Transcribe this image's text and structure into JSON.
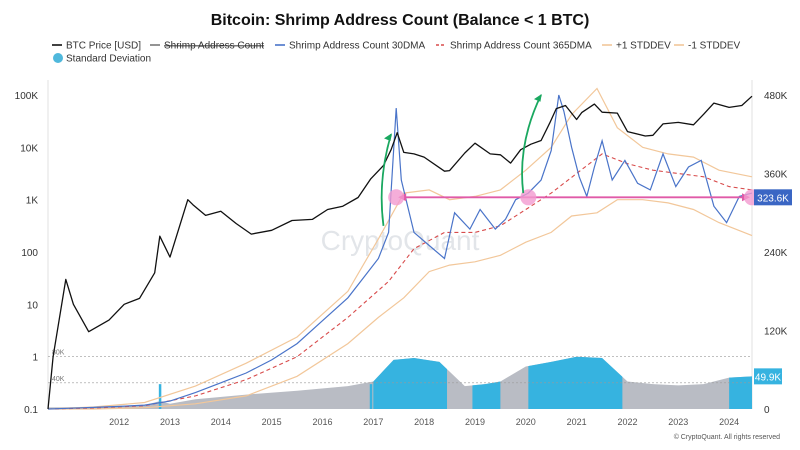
{
  "chart_data": {
    "type": "line",
    "title": "Bitcoin: Shrimp Address Count (Balance < 1 BTC)",
    "legend": [
      {
        "name": "BTC Price [USD]",
        "color": "#111111",
        "style": "solid"
      },
      {
        "name": "Shrimp Address Count",
        "color": "#7a7a7a",
        "style": "strikethrough"
      },
      {
        "name": "Shrimp Address Count 30DMA",
        "color": "#4a74c9",
        "style": "solid"
      },
      {
        "name": "Shrimp Address Count 365DMA",
        "color": "#d84b4b",
        "style": "dashed"
      },
      {
        "name": "+1 STDDEV",
        "color": "#f2c79a",
        "style": "solid"
      },
      {
        "name": "-1 STDDEV",
        "color": "#f2c79a",
        "style": "solid"
      },
      {
        "name": "Standard Deviation",
        "color": "#4fb8dc",
        "style": "dot"
      }
    ],
    "legend_placement": "top-left",
    "x_ticks": [
      "2012",
      "2013",
      "2014",
      "2015",
      "2016",
      "2017",
      "2018",
      "2019",
      "2020",
      "2021",
      "2022",
      "2023",
      "2024"
    ],
    "y_left_ticks": [
      "100K",
      "10K",
      "1K",
      "100",
      "10",
      "1",
      "0.1"
    ],
    "y_left_scale": "log",
    "y_left_range": [
      0.1,
      100000
    ],
    "y_right_ticks": [
      "480K",
      "360K",
      "240K",
      "120K",
      "0"
    ],
    "y_right_range": [
      0,
      480000
    ],
    "ref_lines": [
      {
        "label": "80K",
        "value": 80000
      },
      {
        "label": "40K",
        "value": 40000
      }
    ],
    "highlight_value_label": "323.6K",
    "highlight_value": 323600,
    "stddev_badge_label": "49.9K",
    "stddev_badge_value": 49900,
    "watermark": "CryptoQuant",
    "credit": "© CryptoQuant. All rights reserved",
    "btc_price": {
      "name": "BTC Price [USD]",
      "x": [
        2010.6,
        2011.2,
        2011.45,
        2011.6,
        2011.9,
        2012.3,
        2012.6,
        2012.9,
        2013.2,
        2013.3,
        2013.5,
        2013.85,
        2013.95,
        2014.2,
        2014.5,
        2014.8,
        2015.1,
        2015.5,
        2015.9,
        2016.3,
        2016.6,
        2016.9,
        2017.2,
        2017.45,
        2017.7,
        2017.85,
        2017.97,
        2018.1,
        2018.3,
        2018.5,
        2018.9,
        2019.0,
        2019.3,
        2019.5,
        2019.8,
        2020.0,
        2020.2,
        2020.4,
        2020.6,
        2020.8,
        2020.97,
        2021.1,
        2021.28,
        2021.5,
        2021.6,
        2021.85,
        2022.0,
        2022.3,
        2022.5,
        2022.85,
        2023.0,
        2023.2,
        2023.5,
        2023.8,
        2024.0,
        2024.2,
        2024.5,
        2024.75,
        2024.95
      ],
      "values": [
        0.1,
        1,
        30,
        10,
        3,
        5,
        10,
        13,
        40,
        200,
        80,
        1000,
        800,
        500,
        600,
        350,
        220,
        260,
        400,
        420,
        650,
        750,
        1100,
        2500,
        4500,
        9000,
        19000,
        8000,
        7500,
        6500,
        3500,
        3600,
        7800,
        12000,
        7500,
        7200,
        5000,
        9000,
        11500,
        13500,
        29000,
        55000,
        63000,
        34000,
        46000,
        67000,
        47000,
        45000,
        20000,
        16500,
        17000,
        28000,
        30000,
        27000,
        43000,
        70000,
        58000,
        63000,
        95000
      ]
    },
    "shrimp_30dma": {
      "name": "Shrimp Address Count 30DMA",
      "x": [
        2010.6,
        2011.5,
        2012.0,
        2012.5,
        2013.0,
        2013.5,
        2014.0,
        2014.5,
        2015.0,
        2015.5,
        2016.0,
        2016.5,
        2017.0,
        2017.3,
        2017.6,
        2017.8,
        2017.95,
        2018.05,
        2018.3,
        2018.6,
        2018.9,
        2019.1,
        2019.4,
        2019.6,
        2019.9,
        2020.1,
        2020.3,
        2020.55,
        2020.8,
        2021.0,
        2021.15,
        2021.25,
        2021.4,
        2021.55,
        2021.7,
        2021.85,
        2022.0,
        2022.2,
        2022.45,
        2022.7,
        2022.95,
        2023.2,
        2023.45,
        2023.7,
        2023.95,
        2024.2,
        2024.45,
        2024.7,
        2024.95
      ],
      "values": [
        0,
        1000,
        2500,
        4000,
        6000,
        12000,
        25000,
        40000,
        55000,
        75000,
        100000,
        135000,
        170000,
        200000,
        230000,
        270000,
        460000,
        350000,
        270000,
        250000,
        230000,
        300000,
        275000,
        305000,
        275000,
        290000,
        320000,
        330000,
        350000,
        395000,
        480000,
        455000,
        400000,
        355000,
        325000,
        370000,
        410000,
        350000,
        380000,
        345000,
        335000,
        390000,
        340000,
        370000,
        380000,
        310000,
        285000,
        325000,
        330000
      ]
    },
    "shrimp_365dma": {
      "name": "Shrimp Address Count 365DMA",
      "x": [
        2010.6,
        2012.0,
        2013.0,
        2014.0,
        2015.0,
        2016.0,
        2017.0,
        2017.8,
        2018.3,
        2018.9,
        2019.5,
        2020.0,
        2020.5,
        2021.0,
        2021.5,
        2022.0,
        2022.5,
        2023.0,
        2023.5,
        2024.0,
        2024.5,
        2024.95
      ],
      "values": [
        0,
        1500,
        5000,
        20000,
        45000,
        80000,
        140000,
        195000,
        245000,
        270000,
        270000,
        280000,
        305000,
        330000,
        360000,
        390000,
        375000,
        365000,
        360000,
        355000,
        340000,
        335000
      ]
    },
    "plus_1_stddev": {
      "name": "+1 STDDEV",
      "x": [
        2010.6,
        2012.0,
        2013.0,
        2014.0,
        2015.0,
        2016.0,
        2017.0,
        2017.6,
        2018.1,
        2018.6,
        2019.0,
        2019.5,
        2020.0,
        2020.5,
        2021.0,
        2021.4,
        2021.9,
        2022.3,
        2022.8,
        2023.3,
        2023.8,
        2024.3,
        2024.95
      ],
      "values": [
        0,
        3000,
        10000,
        35000,
        70000,
        110000,
        180000,
        260000,
        330000,
        335000,
        320000,
        325000,
        335000,
        365000,
        400000,
        450000,
        490000,
        430000,
        400000,
        390000,
        385000,
        365000,
        355000
      ]
    },
    "minus_1_stddev": {
      "name": "-1 STDDEV",
      "x": [
        2010.6,
        2012.0,
        2013.0,
        2014.0,
        2015.0,
        2016.0,
        2017.0,
        2017.6,
        2018.1,
        2018.6,
        2019.0,
        2019.5,
        2020.0,
        2020.5,
        2021.0,
        2021.4,
        2021.9,
        2022.3,
        2022.8,
        2023.3,
        2023.8,
        2024.3,
        2024.95
      ],
      "values": [
        0,
        0,
        2000,
        8000,
        20000,
        50000,
        100000,
        140000,
        170000,
        210000,
        220000,
        225000,
        235000,
        255000,
        270000,
        295000,
        300000,
        320000,
        320000,
        315000,
        305000,
        285000,
        265000
      ]
    },
    "standard_deviation": {
      "name": "Standard Deviation",
      "x": [
        2010.6,
        2011.0,
        2012.0,
        2013.0,
        2013.3,
        2013.5,
        2014.0,
        2015.0,
        2016.0,
        2017.0,
        2017.5,
        2017.9,
        2018.3,
        2018.8,
        2019.3,
        2019.7,
        2020.0,
        2020.5,
        2021.0,
        2021.5,
        2022.0,
        2022.5,
        2023.0,
        2023.5,
        2024.0,
        2024.5,
        2024.95
      ],
      "values": [
        1000,
        2500,
        3000,
        6000,
        12000,
        8000,
        15000,
        22000,
        28000,
        35000,
        42000,
        75000,
        78000,
        72000,
        35000,
        38000,
        42000,
        65000,
        72000,
        80000,
        78000,
        42000,
        38000,
        36000,
        38000,
        48000,
        49900
      ]
    },
    "stddev_highlight_periods": [
      [
        2017.5,
        2018.95
      ],
      [
        2019.45,
        2020.0
      ],
      [
        2020.55,
        2022.4
      ],
      [
        2024.5,
        2024.95
      ]
    ],
    "stddev_tick_marks": [
      2013.3,
      2017.45
    ],
    "highlight_level": {
      "value": 323600,
      "x_range": [
        2017.95,
        2024.95
      ],
      "circle_x": [
        2017.95,
        2020.55,
        2024.95
      ]
    },
    "surge_arrows": [
      {
        "x_from": 2017.7,
        "x_to": 2017.85,
        "y_from": 280000,
        "y_to": 420000
      },
      {
        "x_from": 2020.45,
        "x_to": 2020.8,
        "y_from": 330000,
        "y_to": 480000
      }
    ]
  }
}
